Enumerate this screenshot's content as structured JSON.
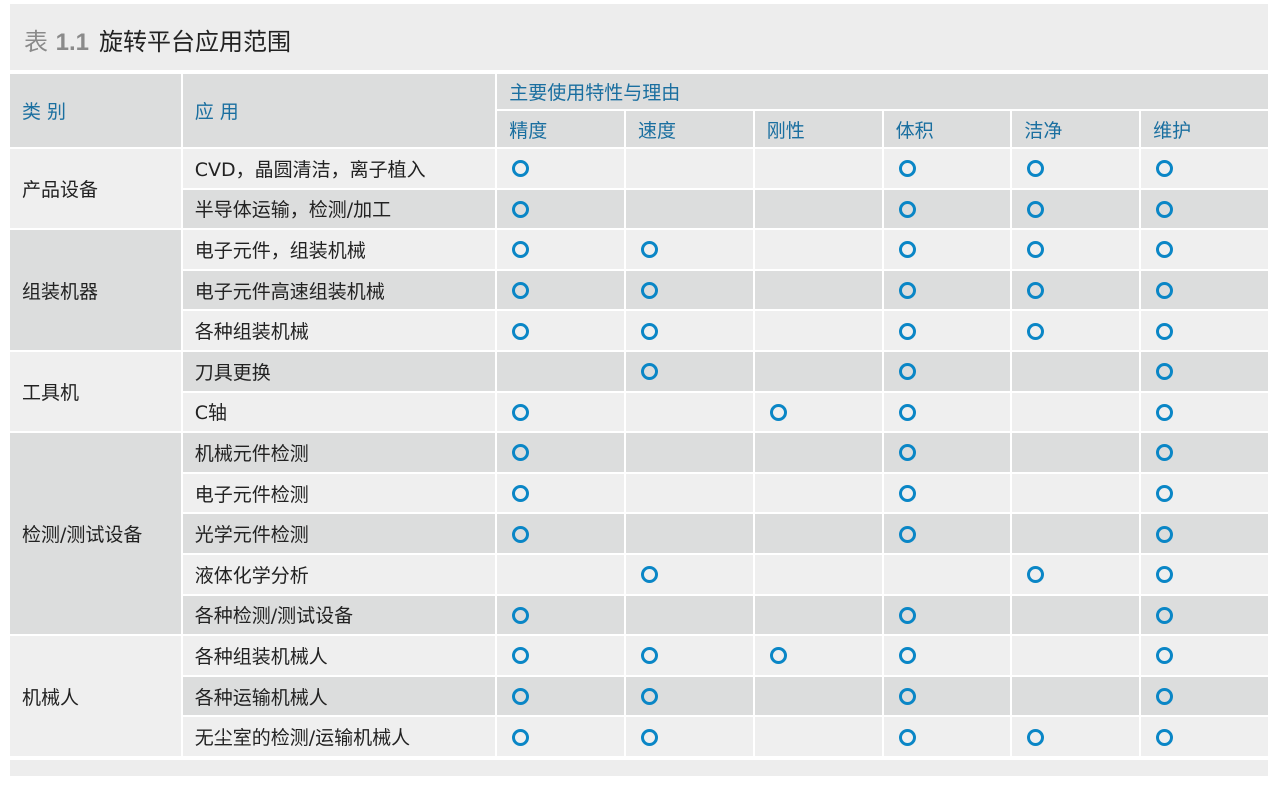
{
  "title": {
    "label": "表",
    "number": "1.1",
    "text": "旋转平台应用范围"
  },
  "header": {
    "category": "类 别",
    "application": "应 用",
    "group": "主要使用特性与理由",
    "columns": [
      "精度",
      "速度",
      "刚性",
      "体积",
      "洁净",
      "维护"
    ]
  },
  "mark_color": "#0a86c6",
  "mark_icon": "circle-ring",
  "groups": [
    {
      "category": "产品设备",
      "rows": [
        {
          "application": "CVD，晶圆清洁，离子植入",
          "marks": [
            1,
            0,
            0,
            1,
            1,
            1
          ]
        },
        {
          "application": "半导体运输，检测/加工",
          "marks": [
            1,
            0,
            0,
            1,
            1,
            1
          ]
        }
      ]
    },
    {
      "category": "组装机器",
      "rows": [
        {
          "application": "电子元件，组装机械",
          "marks": [
            1,
            1,
            0,
            1,
            1,
            1
          ]
        },
        {
          "application": "电子元件高速组装机械",
          "marks": [
            1,
            1,
            0,
            1,
            1,
            1
          ]
        },
        {
          "application": "各种组装机械",
          "marks": [
            1,
            1,
            0,
            1,
            1,
            1
          ]
        }
      ]
    },
    {
      "category": "工具机",
      "rows": [
        {
          "application": "刀具更换",
          "marks": [
            0,
            1,
            0,
            1,
            0,
            1
          ]
        },
        {
          "application": "C轴",
          "marks": [
            1,
            0,
            1,
            1,
            0,
            1
          ]
        }
      ]
    },
    {
      "category": "检测/测试设备",
      "rows": [
        {
          "application": "机械元件检测",
          "marks": [
            1,
            0,
            0,
            1,
            0,
            1
          ]
        },
        {
          "application": "电子元件检测",
          "marks": [
            1,
            0,
            0,
            1,
            0,
            1
          ]
        },
        {
          "application": "光学元件检测",
          "marks": [
            1,
            0,
            0,
            1,
            0,
            1
          ]
        },
        {
          "application": "液体化学分析",
          "marks": [
            0,
            1,
            0,
            0,
            1,
            1
          ]
        },
        {
          "application": "各种检测/测试设备",
          "marks": [
            1,
            0,
            0,
            1,
            0,
            1
          ]
        }
      ]
    },
    {
      "category": "机械人",
      "rows": [
        {
          "application": "各种组装机械人",
          "marks": [
            1,
            1,
            1,
            1,
            0,
            1
          ]
        },
        {
          "application": "各种运输机械人",
          "marks": [
            1,
            1,
            0,
            1,
            0,
            1
          ]
        },
        {
          "application": "无尘室的检测/运输机械人",
          "marks": [
            1,
            1,
            0,
            1,
            1,
            1
          ]
        }
      ]
    }
  ]
}
